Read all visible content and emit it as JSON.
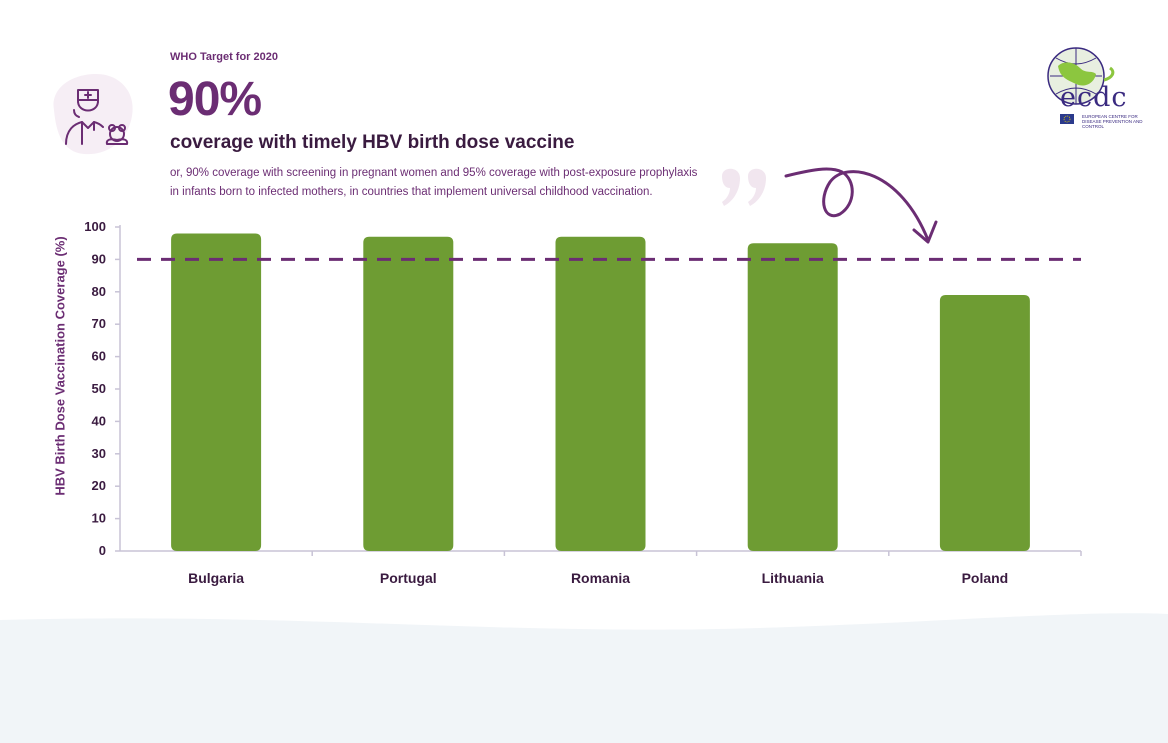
{
  "header": {
    "kicker": "WHO Target for 2020",
    "big_number": "90%",
    "headline": "coverage with timely HBV birth dose vaccine",
    "subtext_line1": "or, 90% coverage with screening in pregnant women and 95% coverage with post-exposure prophylaxis",
    "subtext_line2": "in infants born to infected mothers, in countries that implement universal childhood vaccination."
  },
  "icons": {
    "header_icon": "nurse-with-teddy-bear-icon",
    "quote_icon": "quotation-mark-icon",
    "arrow_icon": "curved-arrow-icon"
  },
  "logo": {
    "name": "ecdc",
    "subtitle": "EUROPEAN CENTRE FOR DISEASE PREVENTION AND CONTROL"
  },
  "colors": {
    "bar": "#6e9c33",
    "accent": "#6b2d73",
    "target_line": "#6b2d73",
    "axis": "#c8c3d6"
  },
  "chart_data": {
    "type": "bar",
    "categories": [
      "Bulgaria",
      "Portugal",
      "Romania",
      "Lithuania",
      "Poland"
    ],
    "values": [
      98,
      97,
      97,
      95,
      79
    ],
    "ylabel": "HBV Birth Dose Vaccination Coverage (%)",
    "xlabel": "",
    "ylim": [
      0,
      100
    ],
    "yticks": [
      0,
      10,
      20,
      30,
      40,
      50,
      60,
      70,
      80,
      90,
      100
    ],
    "target": 90,
    "grid": false
  }
}
